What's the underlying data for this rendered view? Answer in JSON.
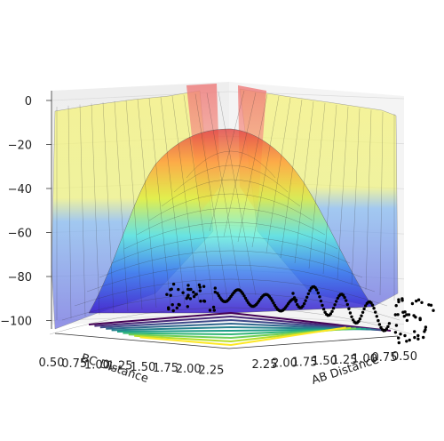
{
  "chart_data": {
    "type": "surface3d",
    "title": "",
    "xlabel": "AB Distance",
    "ylabel": "BC Distance",
    "zlabel": "",
    "x_ticks": [
      "2.25",
      "2.00",
      "1.75",
      "1.50",
      "1.25",
      "1.00",
      "0.75",
      "0.50"
    ],
    "y_ticks": [
      "0.50",
      "0.75",
      "1.00",
      "1.25",
      "1.50",
      "1.75",
      "2.00",
      "2.25"
    ],
    "z_ticks": [
      "0",
      "−20",
      "−40",
      "−60",
      "−80",
      "−100"
    ],
    "zlim": [
      -105,
      2
    ],
    "xlim": [
      0.5,
      2.3
    ],
    "ylim": [
      0.5,
      2.3
    ],
    "colormap": "jet",
    "contour_colormap": "viridis",
    "trajectory_color": "#000000",
    "grid": true,
    "series": [
      {
        "kind": "surface",
        "description_colors": [
          "#2222aa",
          "#33ccff",
          "#ccee44",
          "#ff8800",
          "#dd2222"
        ]
      },
      {
        "kind": "contour-projection"
      },
      {
        "kind": "trajectory-scatter"
      }
    ]
  }
}
